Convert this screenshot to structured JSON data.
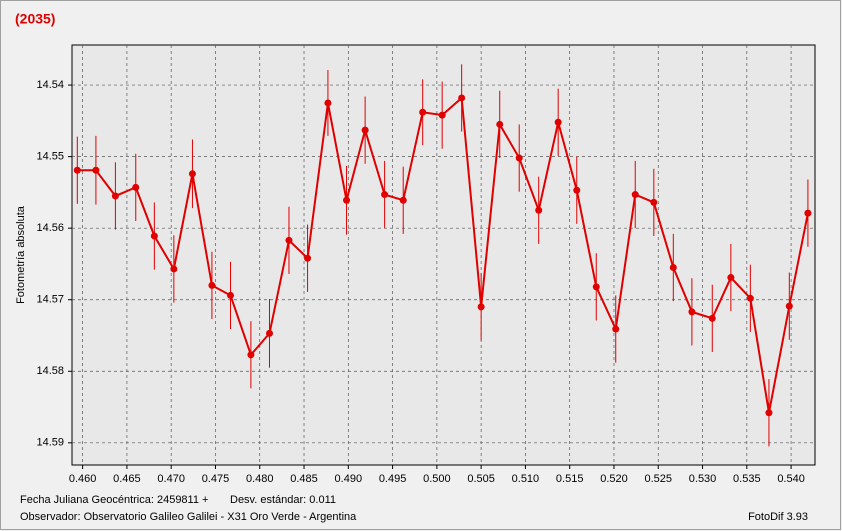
{
  "chart_data": {
    "type": "line",
    "title": "(2035)",
    "y_label": "Fotometría absoluta",
    "x": [
      0.4594,
      0.4615,
      0.4637,
      0.466,
      0.4681,
      0.4703,
      0.4724,
      0.4746,
      0.4767,
      0.479,
      0.4811,
      0.4833,
      0.4854,
      0.4877,
      0.4898,
      0.4919,
      0.4941,
      0.4962,
      0.4984,
      0.5006,
      0.5028,
      0.505,
      0.5071,
      0.5093,
      0.5115,
      0.5137,
      0.5158,
      0.518,
      0.5202,
      0.5224,
      0.5245,
      0.5267,
      0.5288,
      0.5311,
      0.5332,
      0.5354,
      0.5375,
      0.5398,
      0.5419
    ],
    "values": [
      14.5519,
      14.5519,
      14.5555,
      14.5543,
      14.5611,
      14.5657,
      14.5524,
      14.568,
      14.5694,
      14.5777,
      14.5747,
      14.5617,
      14.5642,
      14.5425,
      14.5561,
      14.5463,
      14.5553,
      14.5561,
      14.5438,
      14.5442,
      14.5418,
      14.571,
      14.5455,
      14.5502,
      14.5575,
      14.5452,
      14.5547,
      14.5682,
      14.5741,
      14.5553,
      14.5564,
      14.5655,
      14.5717,
      14.5726,
      14.5669,
      14.5698,
      14.5858,
      14.5709,
      14.5579
    ],
    "errors": [
      0.0047,
      0.0048,
      0.0047,
      0.0047,
      0.0047,
      0.0047,
      0.0048,
      0.0047,
      0.0047,
      0.0047,
      0.0048,
      0.0047,
      0.0047,
      0.0046,
      0.0048,
      0.0047,
      0.0047,
      0.0047,
      0.0046,
      0.0047,
      0.0047,
      0.0047,
      0.0047,
      0.0047,
      0.0047,
      0.0047,
      0.0047,
      0.0047,
      0.0047,
      0.0047,
      0.0047,
      0.0047,
      0.0047,
      0.0047,
      0.0047,
      0.0047,
      0.0047,
      0.0047,
      0.0047
    ],
    "color": "#e00000",
    "xlim": [
      0.4588,
      0.5427
    ],
    "ylim": [
      14.5931,
      14.5344
    ],
    "xticks": [
      {
        "value": 0.46,
        "label": "0.460"
      },
      {
        "value": 0.465,
        "label": "0.465"
      },
      {
        "value": 0.47,
        "label": "0.470"
      },
      {
        "value": 0.475,
        "label": "0.475"
      },
      {
        "value": 0.48,
        "label": "0.480"
      },
      {
        "value": 0.485,
        "label": "0.485"
      },
      {
        "value": 0.49,
        "label": "0.490"
      },
      {
        "value": 0.495,
        "label": "0.495"
      },
      {
        "value": 0.5,
        "label": "0.500"
      },
      {
        "value": 0.505,
        "label": "0.505"
      },
      {
        "value": 0.51,
        "label": "0.510"
      },
      {
        "value": 0.515,
        "label": "0.515"
      },
      {
        "value": 0.52,
        "label": "0.520"
      },
      {
        "value": 0.525,
        "label": "0.525"
      },
      {
        "value": 0.53,
        "label": "0.530"
      },
      {
        "value": 0.535,
        "label": "0.535"
      },
      {
        "value": 0.54,
        "label": "0.540"
      }
    ],
    "yticks": [
      14.54,
      14.55,
      14.56,
      14.57,
      14.58,
      14.59
    ],
    "grid": true
  },
  "footer": {
    "julian_date": "Fecha Juliana Geocéntrica: 2459811 +",
    "std_dev": "Desv. estándar: 0.011",
    "observer": "Observador: Observatorio Galileo Galilei - X31 Oro Verde - Argentina",
    "software": "FotoDif 3.93"
  }
}
